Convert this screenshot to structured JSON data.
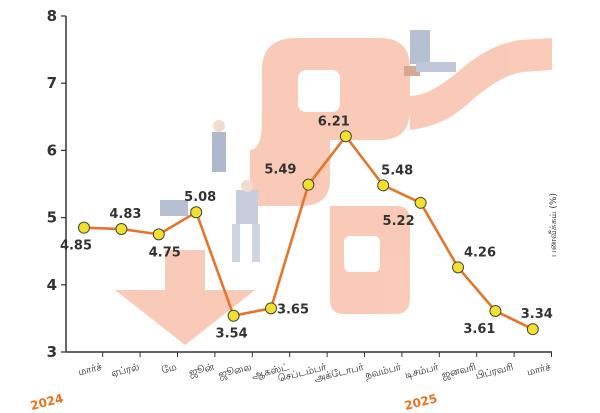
{
  "chart_data": {
    "type": "line",
    "ylabel": "பணவீக்கம் (%)",
    "ylim": [
      3,
      8
    ],
    "yticks": [
      "3",
      "4",
      "5",
      "6",
      "7",
      "8"
    ],
    "categories": [
      "மார்ச்",
      "ஏப்ரல்",
      "மே",
      "ஜூன்",
      "ஜூலை",
      "ஆகஸ்ட்",
      "செப்டம்பர்",
      "அக்டோபர்",
      "நவம்பர்",
      "டிசம்பர்",
      "ஜனவரி",
      "பிப்ரவரி",
      "மார்ச்"
    ],
    "year_labels": [
      {
        "index": 0,
        "text": "2024"
      },
      {
        "index": 10,
        "text": "2025"
      }
    ],
    "series": [
      {
        "values": [
          4.85,
          4.83,
          4.75,
          5.08,
          3.54,
          3.65,
          5.49,
          6.21,
          5.48,
          5.22,
          4.26,
          3.61,
          3.34
        ],
        "labels": [
          "4.85",
          "4.83",
          "4.75",
          "5.08",
          "3.54",
          "3.65",
          "5.49",
          "6.21",
          "5.48",
          "5.22",
          "4.26",
          "3.61",
          "3.34"
        ],
        "color": "#e8742a",
        "marker_color": "#f2e12b"
      }
    ],
    "grid": false
  }
}
